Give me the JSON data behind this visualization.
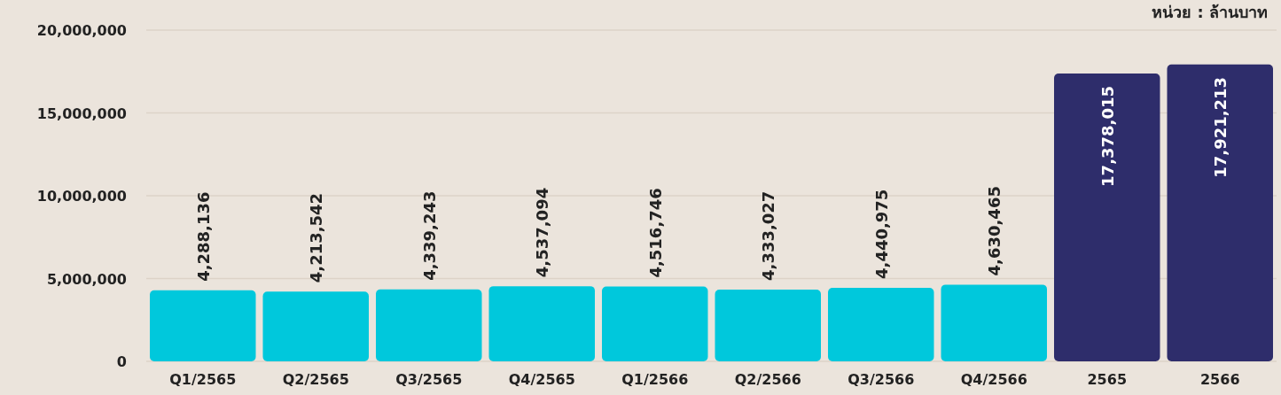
{
  "chart_data": {
    "type": "bar",
    "categories": [
      "Q1/2565",
      "Q2/2565",
      "Q3/2565",
      "Q4/2565",
      "Q1/2566",
      "Q2/2566",
      "Q3/2566",
      "Q4/2566",
      "2565",
      "2566"
    ],
    "values": [
      4288136,
      4213542,
      4339243,
      4537094,
      4516746,
      4333027,
      4440975,
      4630465,
      17378015,
      17921213
    ],
    "colors": [
      "#00c8dc",
      "#00c8dc",
      "#00c8dc",
      "#00c8dc",
      "#00c8dc",
      "#00c8dc",
      "#00c8dc",
      "#00c8dc",
      "#2e2d6b",
      "#2e2d6b"
    ],
    "value_labels": [
      "4,288,136",
      "4,213,542",
      "4,339,243",
      "4,537,094",
      "4,516,746",
      "4,333,027",
      "4,440,975",
      "4,630,465",
      "17,378,015",
      "17,921,213"
    ],
    "ylim": [
      0,
      20000000
    ],
    "yticks": [
      {
        "value": 0,
        "label": "0"
      },
      {
        "value": 5000000,
        "label": "5,000,000"
      },
      {
        "value": 10000000,
        "label": "10,000,000"
      },
      {
        "value": 15000000,
        "label": "15,000,000"
      },
      {
        "value": 20000000,
        "label": "20,000,000"
      }
    ],
    "grid": "y",
    "annotations": [
      "หน่วย : ล้านบาท"
    ]
  }
}
